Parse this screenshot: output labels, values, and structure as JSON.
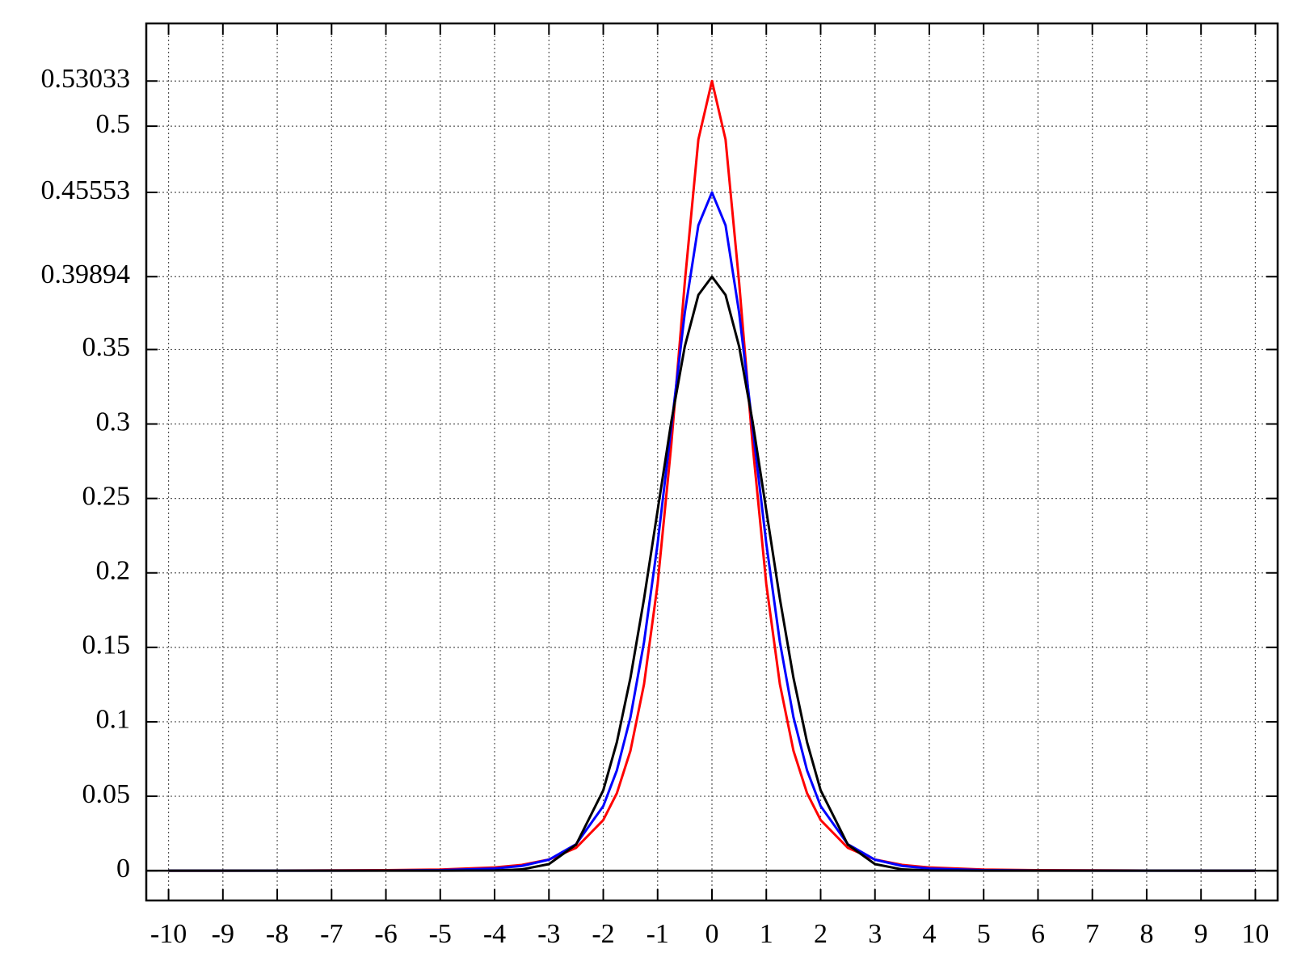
{
  "chart_data": {
    "type": "line",
    "x": [
      -10,
      -8,
      -6,
      -5,
      -4,
      -3.5,
      -3,
      -2.5,
      -2,
      -1.75,
      -1.5,
      -1.25,
      -1,
      -0.75,
      -0.5,
      -0.25,
      0,
      0.25,
      0.5,
      0.75,
      1,
      1.25,
      1.5,
      1.75,
      2,
      2.5,
      3,
      3.5,
      4,
      5,
      6,
      8,
      10
    ],
    "series": [
      {
        "color": "#ff0000",
        "values": [
          3e-05,
          8e-05,
          0.00034,
          0.00079,
          0.00218,
          0.00392,
          0.00748,
          0.01535,
          0.03402,
          0.05203,
          0.08057,
          0.12524,
          0.19245,
          0.28541,
          0.39507,
          0.49106,
          0.53033,
          0.49106,
          0.39507,
          0.28541,
          0.19245,
          0.12524,
          0.08057,
          0.05203,
          0.03402,
          0.01535,
          0.00748,
          0.00392,
          0.00218,
          0.00079,
          0.00034,
          8e-05,
          3e-05
        ]
      },
      {
        "color": "#0000ff",
        "values": [
          0,
          1e-05,
          0.0001,
          0.00035,
          0.00146,
          0.00322,
          0.00741,
          0.01777,
          0.04339,
          0.06737,
          0.10305,
          0.1535,
          0.21968,
          0.29739,
          0.37476,
          0.43345,
          0.45553,
          0.43345,
          0.37476,
          0.29739,
          0.21968,
          0.1535,
          0.10305,
          0.06737,
          0.04339,
          0.01777,
          0.00741,
          0.00322,
          0.00146,
          0.00035,
          0.0001,
          1e-05,
          0
        ]
      },
      {
        "color": "#000000",
        "values": [
          0,
          0,
          0,
          0,
          0.00013,
          0.00087,
          0.00443,
          0.01753,
          0.05399,
          0.08628,
          0.12952,
          0.18265,
          0.24197,
          0.30114,
          0.35207,
          0.38667,
          0.39894,
          0.38667,
          0.35207,
          0.30114,
          0.24197,
          0.18265,
          0.12952,
          0.08628,
          0.05399,
          0.01753,
          0.00443,
          0.00087,
          0.00013,
          0,
          0,
          0,
          0
        ]
      }
    ],
    "xlim": [
      -10.41,
      10.41
    ],
    "xticks": [
      -10,
      -9,
      -8,
      -7,
      -6,
      -5,
      -4,
      -3,
      -2,
      -1,
      0,
      1,
      2,
      3,
      4,
      5,
      6,
      7,
      8,
      9,
      10
    ],
    "ylim": [
      -0.02,
      0.569
    ],
    "yticks": [
      0,
      0.05,
      0.1,
      0.15,
      0.2,
      0.25,
      0.3,
      0.35,
      0.39894,
      0.45553,
      0.5,
      0.53033
    ],
    "grid": true
  }
}
